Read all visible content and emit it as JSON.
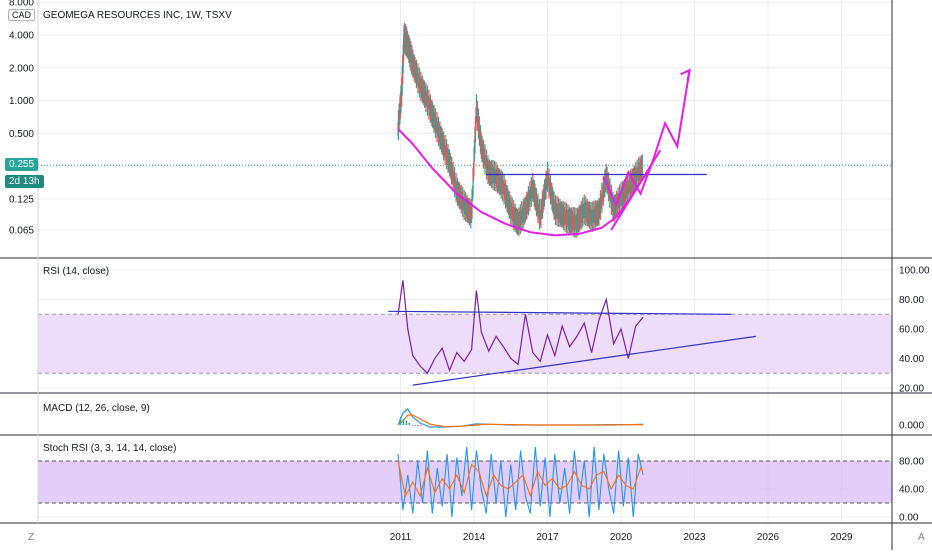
{
  "header": {
    "currency": "CAD",
    "title": "GEOMEGA RESOURCES INC, 1W, TSXV"
  },
  "price_tag": {
    "value": "0.255",
    "countdown": "2d 13h",
    "color": "#26a69a"
  },
  "bottom": {
    "left_btn": "Z",
    "right_btn": "A"
  },
  "colors": {
    "up": "#26a69a",
    "down": "#ef5350",
    "drawing_pink": "#e61ee6",
    "drawing_blue": "#3030c8",
    "rsi_line": "#7b1fa2",
    "rsi_band": "#eedcfb",
    "macd_line": "#2196f3",
    "signal_line": "#ff6d00",
    "stoch_k": "#2196f3",
    "stoch_d": "#ff6d00",
    "stoch_band": "#d9b8f5",
    "grid": "#e9ecf1"
  },
  "chart_data": [
    {
      "type": "line",
      "panel": "price",
      "scale": "log",
      "ylim": [
        0.04,
        8.0
      ],
      "y_ticks": [
        "8.000",
        "4.000",
        "2.000",
        "1.000",
        "0.500",
        "0.250",
        "0.125",
        "0.065"
      ],
      "y_tick_values": [
        8.0,
        4.0,
        2.0,
        1.0,
        0.5,
        0.25,
        0.125,
        0.065
      ],
      "x_ticks": [
        "2011",
        "2014",
        "2017",
        "2020",
        "2023",
        "2026",
        "2029"
      ],
      "x_tick_values": [
        2011,
        2014,
        2017,
        2020,
        2023,
        2026,
        2029
      ],
      "xlim": [
        2011,
        2030.5
      ],
      "series": [
        {
          "x": [
            2010.9,
            2011.05,
            2011.15,
            2011.3,
            2011.5,
            2011.8,
            2012.1,
            2012.4,
            2012.7,
            2013.0,
            2013.3,
            2013.6,
            2013.9,
            2014.1,
            2014.3,
            2014.6,
            2014.9,
            2015.2,
            2015.5,
            2015.8,
            2016.1,
            2016.4,
            2016.7,
            2017.0,
            2017.3,
            2017.6,
            2017.9,
            2018.2,
            2018.5,
            2018.8,
            2019.1,
            2019.4,
            2019.7,
            2020.0,
            2020.3,
            2020.6,
            2020.9
          ],
          "values": [
            0.55,
            1.2,
            3.9,
            3.2,
            2.2,
            1.4,
            1.0,
            0.65,
            0.42,
            0.27,
            0.15,
            0.11,
            0.09,
            0.85,
            0.38,
            0.22,
            0.2,
            0.16,
            0.1,
            0.075,
            0.1,
            0.16,
            0.085,
            0.2,
            0.1,
            0.09,
            0.08,
            0.075,
            0.1,
            0.085,
            0.095,
            0.2,
            0.1,
            0.13,
            0.16,
            0.2,
            0.25
          ]
        }
      ],
      "annotations": [
        {
          "kind": "cup_curve",
          "color": "pink",
          "x": [
            2010.9,
            2011.5,
            2012.3,
            2013.3,
            2014.3,
            2015.3,
            2016.3,
            2017.3,
            2018.3,
            2019.2,
            2019.8,
            2020.3,
            2020.8,
            2021.1
          ],
          "y": [
            0.55,
            0.4,
            0.24,
            0.14,
            0.095,
            0.074,
            0.062,
            0.058,
            0.06,
            0.068,
            0.085,
            0.12,
            0.18,
            0.22
          ]
        },
        {
          "kind": "resistance",
          "color": "blue",
          "x": [
            2014.5,
            2023.5
          ],
          "y": [
            0.21,
            0.21
          ]
        },
        {
          "kind": "projection_arrow",
          "color": "pink",
          "x": [
            2019.3,
            2019.8,
            2020.3,
            2020.8,
            2021.3,
            2021.8,
            2022.3,
            2022.8
          ],
          "y": [
            0.2,
            0.11,
            0.22,
            0.14,
            0.28,
            0.62,
            0.38,
            1.9
          ]
        },
        {
          "kind": "trend",
          "color": "pink",
          "x": [
            2019.6,
            2021.6
          ],
          "y": [
            0.065,
            0.35
          ]
        }
      ]
    },
    {
      "type": "line",
      "panel": "rsi",
      "title": "RSI (14, close)",
      "ylim": [
        15,
        105
      ],
      "y_ticks": [
        "100.00",
        "80.00",
        "60.00",
        "40.00",
        "20.00"
      ],
      "y_tick_values": [
        100,
        80,
        60,
        40,
        20
      ],
      "band": [
        30,
        70
      ],
      "series": [
        {
          "name": "RSI",
          "x": [
            2010.9,
            2011.1,
            2011.3,
            2011.5,
            2011.8,
            2012.1,
            2012.4,
            2012.7,
            2013.0,
            2013.3,
            2013.6,
            2013.9,
            2014.1,
            2014.3,
            2014.6,
            2014.9,
            2015.2,
            2015.5,
            2015.8,
            2016.1,
            2016.4,
            2016.7,
            2017.0,
            2017.3,
            2017.6,
            2017.9,
            2018.2,
            2018.5,
            2018.8,
            2019.1,
            2019.4,
            2019.7,
            2020.0,
            2020.3,
            2020.6,
            2020.9
          ],
          "values": [
            70,
            93,
            60,
            42,
            35,
            30,
            40,
            47,
            32,
            44,
            38,
            46,
            86,
            58,
            45,
            55,
            48,
            40,
            36,
            70,
            44,
            38,
            56,
            42,
            62,
            48,
            55,
            64,
            44,
            66,
            80,
            50,
            60,
            40,
            62,
            68
          ]
        }
      ],
      "annotations": [
        {
          "kind": "trend_top",
          "x": [
            2010.5,
            2024.5
          ],
          "y": [
            72,
            70
          ]
        },
        {
          "kind": "trend_bottom",
          "x": [
            2011.5,
            2025.5
          ],
          "y": [
            22,
            55
          ]
        }
      ]
    },
    {
      "type": "line",
      "panel": "macd",
      "title": "MACD (12, 26, close, 9)",
      "y_ticks": [
        "0.000"
      ],
      "y_tick_values": [
        0
      ],
      "ylim": [
        -0.15,
        0.45
      ],
      "series": [
        {
          "name": "MACD",
          "x": [
            2010.9,
            2011.1,
            2011.3,
            2011.5,
            2011.8,
            2012.2,
            2012.8,
            2013.5,
            2014.1,
            2014.5,
            2015.5,
            2016.5,
            2017.5,
            2018.5,
            2019.5,
            2020.5,
            2020.9
          ],
          "values": [
            0.0,
            0.3,
            0.4,
            0.2,
            0.05,
            -0.05,
            -0.05,
            -0.03,
            0.03,
            0.02,
            0.0,
            0.0,
            0.0,
            0.0,
            0.01,
            0.01,
            0.02
          ]
        },
        {
          "name": "Signal",
          "x": [
            2010.9,
            2011.1,
            2011.3,
            2011.5,
            2011.8,
            2012.2,
            2012.8,
            2013.5,
            2014.1,
            2014.5,
            2015.5,
            2016.5,
            2017.5,
            2018.5,
            2019.5,
            2020.5,
            2020.9
          ],
          "values": [
            0.0,
            0.1,
            0.25,
            0.25,
            0.15,
            0.02,
            -0.04,
            -0.03,
            0.0,
            0.02,
            0.01,
            0.0,
            0.0,
            0.0,
            0.0,
            0.01,
            0.01
          ]
        }
      ]
    },
    {
      "type": "line",
      "panel": "stoch",
      "title": "Stoch RSI (3, 3, 14, 14, close)",
      "ylim": [
        -5,
        105
      ],
      "y_ticks": [
        "80.00",
        "40.00",
        "0.00"
      ],
      "y_tick_values": [
        80,
        40,
        0
      ],
      "band": [
        20,
        80
      ],
      "series": [
        {
          "name": "K",
          "x": [
            2010.9,
            2011.1,
            2011.3,
            2011.5,
            2011.7,
            2011.9,
            2012.1,
            2012.3,
            2012.5,
            2012.7,
            2012.9,
            2013.1,
            2013.3,
            2013.5,
            2013.7,
            2013.9,
            2014.1,
            2014.3,
            2014.5,
            2014.7,
            2014.9,
            2015.1,
            2015.3,
            2015.5,
            2015.7,
            2015.9,
            2016.1,
            2016.3,
            2016.5,
            2016.7,
            2016.9,
            2017.1,
            2017.3,
            2017.5,
            2017.7,
            2017.9,
            2018.1,
            2018.3,
            2018.5,
            2018.7,
            2018.9,
            2019.1,
            2019.3,
            2019.5,
            2019.7,
            2019.9,
            2020.1,
            2020.3,
            2020.5,
            2020.7,
            2020.9
          ],
          "values": [
            90,
            10,
            60,
            5,
            80,
            20,
            95,
            5,
            70,
            15,
            90,
            0,
            85,
            30,
            100,
            10,
            95,
            40,
            5,
            90,
            20,
            80,
            0,
            75,
            10,
            95,
            30,
            5,
            100,
            15,
            85,
            0,
            90,
            20,
            70,
            5,
            95,
            25,
            80,
            0,
            100,
            10,
            90,
            40,
            5,
            95,
            15,
            85,
            0,
            90,
            60
          ]
        },
        {
          "name": "D",
          "x": [
            2010.9,
            2011.2,
            2011.5,
            2011.8,
            2012.1,
            2012.4,
            2012.7,
            2013.0,
            2013.3,
            2013.6,
            2013.9,
            2014.2,
            2014.5,
            2014.8,
            2015.1,
            2015.4,
            2015.7,
            2016.0,
            2016.3,
            2016.6,
            2016.9,
            2017.2,
            2017.5,
            2017.8,
            2018.1,
            2018.4,
            2018.7,
            2019.0,
            2019.3,
            2019.6,
            2019.9,
            2020.2,
            2020.5,
            2020.8,
            2020.9
          ],
          "values": [
            80,
            30,
            50,
            30,
            70,
            35,
            55,
            40,
            60,
            35,
            75,
            65,
            30,
            60,
            45,
            40,
            50,
            60,
            30,
            65,
            45,
            55,
            40,
            45,
            65,
            45,
            40,
            60,
            65,
            40,
            60,
            45,
            40,
            70,
            65
          ]
        }
      ]
    }
  ]
}
